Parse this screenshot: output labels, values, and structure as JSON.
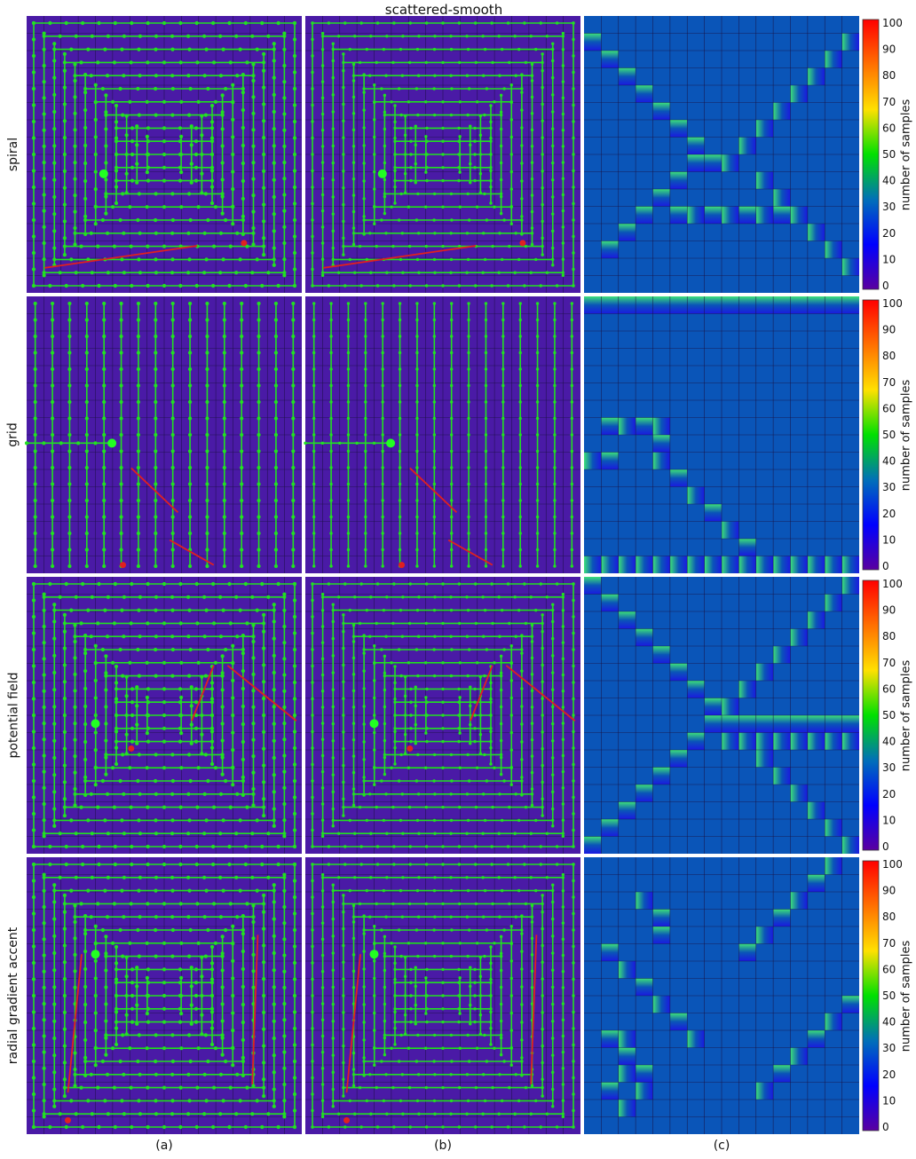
{
  "title": "scattered-smooth",
  "rows": [
    {
      "label": "spiral"
    },
    {
      "label": "grid"
    },
    {
      "label": "potential field"
    },
    {
      "label": "radial gradient accent"
    }
  ],
  "columns": [
    {
      "label": "(a)"
    },
    {
      "label": "(b)"
    },
    {
      "label": "(c)"
    }
  ],
  "colorbar": {
    "title": "number of samples",
    "ticks": [
      "0",
      "10",
      "20",
      "30",
      "40",
      "50",
      "60",
      "70",
      "80",
      "90",
      "100"
    ],
    "colors": [
      "#5a00a0",
      "#0000ff",
      "#0070b8",
      "#00e000",
      "#ffe000",
      "#ff7000",
      "#ff0000"
    ]
  },
  "colors": {
    "background": "#4a1aa6",
    "grid_line": "#1a1040",
    "path": "#22e022",
    "jump": "#e02020",
    "start_marker": "#22ff22",
    "end_marker": "#e02020",
    "heat_base": "#0a55b8",
    "heat_low": "#1a1ae0",
    "heat_high": "#3ce07a"
  }
}
